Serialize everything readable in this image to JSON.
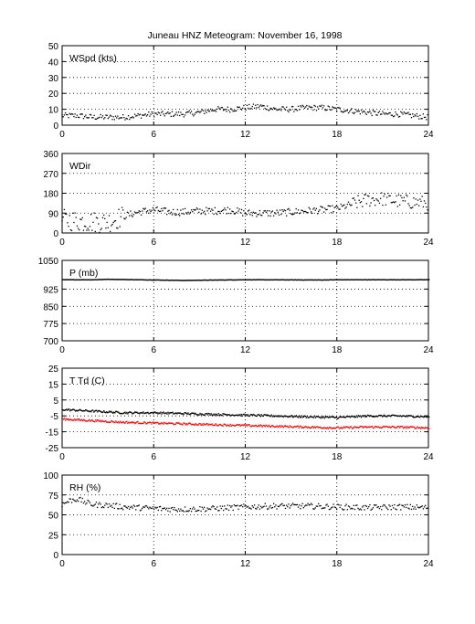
{
  "title": "Juneau HNZ Meteogram:  November 16, 1998",
  "chart_data": [
    {
      "type": "scatter",
      "label": "WSpd (kts)",
      "xlim": [
        0,
        24
      ],
      "ylim": [
        0,
        50
      ],
      "xticks": [
        "0",
        "6",
        "12",
        "18",
        "24"
      ],
      "yticks": [
        "0",
        "10",
        "20",
        "30",
        "40",
        "50"
      ],
      "grid": true,
      "series": [
        {
          "color": "#000000",
          "points": [
            [
              0,
              6
            ],
            [
              1,
              6
            ],
            [
              2,
              5
            ],
            [
              3,
              5
            ],
            [
              4,
              5
            ],
            [
              5,
              6
            ],
            [
              6,
              7
            ],
            [
              7,
              7
            ],
            [
              8,
              7
            ],
            [
              9,
              8
            ],
            [
              10,
              10
            ],
            [
              11,
              10
            ],
            [
              12,
              11
            ],
            [
              13,
              12
            ],
            [
              14,
              10
            ],
            [
              15,
              10
            ],
            [
              16,
              11
            ],
            [
              17,
              11
            ],
            [
              18,
              10
            ],
            [
              19,
              9
            ],
            [
              20,
              8
            ],
            [
              21,
              7
            ],
            [
              22,
              7
            ],
            [
              23,
              6
            ],
            [
              24,
              5
            ]
          ]
        }
      ]
    },
    {
      "type": "scatter",
      "label": "WDir",
      "xlim": [
        0,
        24
      ],
      "ylim": [
        0,
        360
      ],
      "xticks": [
        "0",
        "6",
        "12",
        "18",
        "24"
      ],
      "yticks": [
        "0",
        "90",
        "180",
        "270",
        "360"
      ],
      "grid": true,
      "series": [
        {
          "color": "#000000",
          "points": [
            [
              0,
              60
            ],
            [
              1,
              55
            ],
            [
              2,
              50
            ],
            [
              3,
              50
            ],
            [
              4,
              75
            ],
            [
              5,
              95
            ],
            [
              6,
              105
            ],
            [
              7,
              95
            ],
            [
              8,
              95
            ],
            [
              9,
              100
            ],
            [
              10,
              100
            ],
            [
              11,
              105
            ],
            [
              12,
              90
            ],
            [
              13,
              90
            ],
            [
              14,
              90
            ],
            [
              15,
              95
            ],
            [
              16,
              100
            ],
            [
              17,
              105
            ],
            [
              18,
              110
            ],
            [
              19,
              130
            ],
            [
              20,
              150
            ],
            [
              21,
              155
            ],
            [
              22,
              145
            ],
            [
              23,
              140
            ],
            [
              24,
              135
            ]
          ]
        }
      ]
    },
    {
      "type": "line",
      "label": "P (mb)",
      "xlim": [
        0,
        24
      ],
      "ylim": [
        700,
        1050
      ],
      "xticks": [
        "0",
        "6",
        "12",
        "18",
        "24"
      ],
      "yticks": [
        "700",
        "775",
        "850",
        "925",
        "1050"
      ],
      "grid": true,
      "series": [
        {
          "color": "#000000",
          "points": [
            [
              0,
              966
            ],
            [
              2,
              966
            ],
            [
              3,
              968
            ],
            [
              5,
              966
            ],
            [
              8,
              963
            ],
            [
              9,
              964
            ],
            [
              12,
              966
            ],
            [
              17,
              965
            ],
            [
              18,
              966
            ],
            [
              24,
              966
            ]
          ]
        }
      ]
    },
    {
      "type": "line",
      "label": "T Td (C)",
      "xlim": [
        0,
        24
      ],
      "ylim": [
        -25,
        25
      ],
      "xticks": [
        "0",
        "6",
        "12",
        "18",
        "24"
      ],
      "yticks": [
        "-25",
        "-15",
        "-5",
        "5",
        "15",
        "25"
      ],
      "grid": true,
      "series": [
        {
          "name": "T",
          "color": "#000000",
          "points": [
            [
              0,
              -1
            ],
            [
              2,
              -2
            ],
            [
              4,
              -3
            ],
            [
              6,
              -3
            ],
            [
              8,
              -3.5
            ],
            [
              10,
              -4
            ],
            [
              12,
              -4.5
            ],
            [
              14,
              -5
            ],
            [
              16,
              -5.5
            ],
            [
              18,
              -6
            ],
            [
              20,
              -5
            ],
            [
              22,
              -5
            ],
            [
              24,
              -5.5
            ]
          ]
        },
        {
          "name": "Td",
          "color": "#ff0000",
          "points": [
            [
              0,
              -7
            ],
            [
              2,
              -8
            ],
            [
              4,
              -9
            ],
            [
              6,
              -9.5
            ],
            [
              8,
              -10
            ],
            [
              10,
              -10.5
            ],
            [
              12,
              -11
            ],
            [
              14,
              -11.5
            ],
            [
              16,
              -12
            ],
            [
              18,
              -12.5
            ],
            [
              20,
              -12
            ],
            [
              22,
              -12
            ],
            [
              24,
              -12.5
            ]
          ]
        }
      ]
    },
    {
      "type": "scatter",
      "label": "RH (%)",
      "xlim": [
        0,
        24
      ],
      "ylim": [
        0,
        100
      ],
      "xticks": [
        "0",
        "6",
        "12",
        "18",
        "24"
      ],
      "yticks": [
        "0",
        "25",
        "50",
        "75",
        "100"
      ],
      "grid": true,
      "series": [
        {
          "color": "#000000",
          "points": [
            [
              0,
              63
            ],
            [
              0.5,
              68
            ],
            [
              1,
              70
            ],
            [
              1.5,
              66
            ],
            [
              2,
              63
            ],
            [
              3,
              62
            ],
            [
              4,
              60
            ],
            [
              6,
              58
            ],
            [
              8,
              57
            ],
            [
              10,
              58
            ],
            [
              12,
              60
            ],
            [
              14,
              61
            ],
            [
              16,
              61
            ],
            [
              18,
              60
            ],
            [
              20,
              59
            ],
            [
              22,
              60
            ],
            [
              24,
              59
            ]
          ]
        }
      ]
    }
  ]
}
